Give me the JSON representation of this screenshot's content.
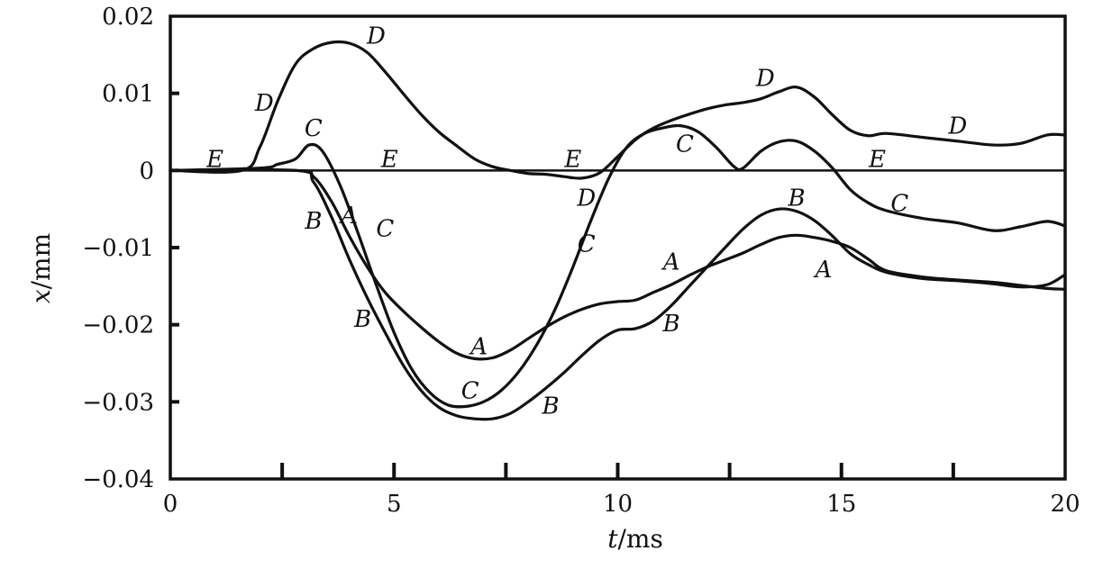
{
  "chart_data": {
    "type": "line",
    "xlabel": {
      "var": "t",
      "unit": "/ms"
    },
    "ylabel": {
      "var": "x",
      "unit": "/mm"
    },
    "xlim": [
      0,
      20
    ],
    "ylim": [
      -0.04,
      0.02
    ],
    "x_ticks": [
      {
        "value": 0,
        "label": "0"
      },
      {
        "value": 5,
        "label": "5"
      },
      {
        "value": 10,
        "label": "10"
      },
      {
        "value": 15,
        "label": "15"
      },
      {
        "value": 20,
        "label": "20"
      }
    ],
    "x_minor_ticks": [
      2.5,
      7.5,
      12.5,
      17.5
    ],
    "y_ticks": [
      {
        "value": 0.02,
        "label": "0.02"
      },
      {
        "value": 0.01,
        "label": "0.01"
      },
      {
        "value": 0,
        "label": "0"
      },
      {
        "value": -0.01,
        "label": "−0.01"
      },
      {
        "value": -0.02,
        "label": "−0.02"
      },
      {
        "value": -0.03,
        "label": "−0.03"
      },
      {
        "value": -0.04,
        "label": "−0.04"
      }
    ],
    "grid": false,
    "legend": "none",
    "series": [
      {
        "name": "A",
        "x": [
          0,
          2.8,
          3.2,
          3.6,
          4.0,
          4.4,
          4.8,
          5.2,
          5.6,
          6.0,
          6.4,
          6.8,
          7.2,
          7.6,
          8.0,
          8.4,
          8.8,
          9.2,
          9.6,
          10.0,
          10.4,
          10.8,
          11.2,
          11.6,
          12.0,
          12.4,
          12.8,
          13.2,
          13.6,
          14.0,
          14.4,
          14.8,
          15.2,
          15.6,
          16.0,
          16.8,
          17.6,
          18.4,
          19.0,
          19.6,
          20.0
        ],
        "y": [
          0,
          0,
          -0.0008,
          -0.004,
          -0.0085,
          -0.0125,
          -0.0158,
          -0.0182,
          -0.0203,
          -0.0222,
          -0.0237,
          -0.0244,
          -0.0243,
          -0.0233,
          -0.0218,
          -0.0203,
          -0.019,
          -0.018,
          -0.0173,
          -0.017,
          -0.0168,
          -0.0158,
          -0.0148,
          -0.0136,
          -0.0125,
          -0.0116,
          -0.0107,
          -0.0096,
          -0.0087,
          -0.0084,
          -0.0087,
          -0.0092,
          -0.01,
          -0.0115,
          -0.013,
          -0.0138,
          -0.0142,
          -0.0145,
          -0.0149,
          -0.0153,
          -0.0154
        ]
      },
      {
        "name": "B",
        "x": [
          0,
          2.8,
          3.2,
          3.6,
          4.0,
          4.4,
          4.8,
          5.2,
          5.6,
          6.0,
          6.4,
          6.8,
          7.2,
          7.6,
          8.0,
          8.4,
          8.8,
          9.2,
          9.6,
          10.0,
          10.4,
          10.8,
          11.2,
          11.6,
          12.0,
          12.4,
          12.8,
          13.2,
          13.6,
          14.0,
          14.4,
          14.8,
          15.2,
          15.6,
          16.0,
          16.8,
          17.6,
          18.4,
          19.0,
          19.6,
          20.0
        ],
        "y": [
          0,
          0,
          -0.0015,
          -0.006,
          -0.0115,
          -0.0165,
          -0.021,
          -0.0252,
          -0.0285,
          -0.0307,
          -0.0318,
          -0.0322,
          -0.0322,
          -0.0315,
          -0.03,
          -0.0282,
          -0.0262,
          -0.024,
          -0.022,
          -0.0207,
          -0.0205,
          -0.0195,
          -0.0175,
          -0.015,
          -0.0125,
          -0.01,
          -0.0076,
          -0.0058,
          -0.005,
          -0.0053,
          -0.0065,
          -0.0085,
          -0.0108,
          -0.0122,
          -0.0132,
          -0.014,
          -0.0143,
          -0.0147,
          -0.0151,
          -0.0148,
          -0.0135
        ]
      },
      {
        "name": "C",
        "x": [
          0,
          2.0,
          2.4,
          2.8,
          3.1,
          3.4,
          3.8,
          4.2,
          4.6,
          5.0,
          5.4,
          5.8,
          6.2,
          6.6,
          7.0,
          7.4,
          7.8,
          8.2,
          8.6,
          9.0,
          9.4,
          9.8,
          10.2,
          10.6,
          11.0,
          11.4,
          11.8,
          12.2,
          12.6,
          12.8,
          13.2,
          13.6,
          14.0,
          14.4,
          14.8,
          15.2,
          15.6,
          16.0,
          16.8,
          17.6,
          18.4,
          19.0,
          19.6,
          20.0
        ],
        "y": [
          0,
          0.0003,
          0.0008,
          0.0015,
          0.0033,
          0.0025,
          -0.002,
          -0.0082,
          -0.0148,
          -0.021,
          -0.0258,
          -0.0288,
          -0.0304,
          -0.0306,
          -0.03,
          -0.0285,
          -0.026,
          -0.0225,
          -0.018,
          -0.0125,
          -0.0065,
          -0.001,
          0.003,
          0.0048,
          0.0055,
          0.0058,
          0.005,
          0.003,
          0.0005,
          0.0003,
          0.0025,
          0.0037,
          0.0038,
          0.0025,
          0.0003,
          -0.0025,
          -0.0042,
          -0.0052,
          -0.0062,
          -0.0068,
          -0.0078,
          -0.0073,
          -0.0066,
          -0.0072
        ]
      },
      {
        "name": "D",
        "x": [
          0,
          1.6,
          2.0,
          2.4,
          2.8,
          3.2,
          3.6,
          4.0,
          4.4,
          4.8,
          5.2,
          5.6,
          6.0,
          6.4,
          6.8,
          7.2,
          7.6,
          8.0,
          8.4,
          8.8,
          9.2,
          9.6,
          10.0,
          10.4,
          10.8,
          11.2,
          11.6,
          12.0,
          12.4,
          12.8,
          13.2,
          13.6,
          14.0,
          14.4,
          14.8,
          15.2,
          15.6,
          16.0,
          16.8,
          17.6,
          18.4,
          19.0,
          19.6,
          20.0
        ],
        "y": [
          0,
          0,
          0.003,
          0.009,
          0.0138,
          0.0158,
          0.0166,
          0.0165,
          0.0153,
          0.0128,
          0.01,
          0.0073,
          0.005,
          0.0032,
          0.0015,
          0.0005,
          0.0,
          -0.0004,
          -0.0005,
          -0.0008,
          -0.001,
          -0.0003,
          0.0018,
          0.004,
          0.0055,
          0.0065,
          0.0073,
          0.008,
          0.0085,
          0.0088,
          0.0093,
          0.0102,
          0.0108,
          0.0095,
          0.0072,
          0.0052,
          0.0045,
          0.0048,
          0.0043,
          0.0038,
          0.0033,
          0.0035,
          0.0046,
          0.0046
        ]
      },
      {
        "name": "E",
        "x": [
          0,
          20
        ],
        "y": [
          0,
          0
        ]
      }
    ],
    "curve_labels": [
      {
        "text": "E",
        "x": 1.0,
        "y": 0.0015
      },
      {
        "text": "E",
        "x": 4.9,
        "y": 0.0015
      },
      {
        "text": "E",
        "x": 9.0,
        "y": 0.0015
      },
      {
        "text": "E",
        "x": 15.8,
        "y": 0.0015
      },
      {
        "text": "D",
        "x": 2.1,
        "y": 0.0088
      },
      {
        "text": "D",
        "x": 4.6,
        "y": 0.0175
      },
      {
        "text": "D",
        "x": 9.3,
        "y": -0.0035
      },
      {
        "text": "D",
        "x": 13.3,
        "y": 0.012
      },
      {
        "text": "D",
        "x": 17.6,
        "y": 0.0058
      },
      {
        "text": "C",
        "x": 3.2,
        "y": 0.0055
      },
      {
        "text": "C",
        "x": 4.8,
        "y": -0.0075
      },
      {
        "text": "C",
        "x": 9.3,
        "y": -0.0095
      },
      {
        "text": "C",
        "x": 11.5,
        "y": 0.0035
      },
      {
        "text": "C",
        "x": 16.3,
        "y": -0.0042
      },
      {
        "text": "C",
        "x": 6.7,
        "y": -0.0285
      },
      {
        "text": "B",
        "x": 3.2,
        "y": -0.0065
      },
      {
        "text": "B",
        "x": 4.3,
        "y": -0.0192
      },
      {
        "text": "B",
        "x": 8.5,
        "y": -0.0305
      },
      {
        "text": "B",
        "x": 11.2,
        "y": -0.0198
      },
      {
        "text": "B",
        "x": 14.0,
        "y": -0.0035
      },
      {
        "text": "A",
        "x": 4.0,
        "y": -0.0058
      },
      {
        "text": "A",
        "x": 6.9,
        "y": -0.0228
      },
      {
        "text": "A",
        "x": 11.2,
        "y": -0.0118
      },
      {
        "text": "A",
        "x": 14.6,
        "y": -0.0128
      }
    ]
  }
}
